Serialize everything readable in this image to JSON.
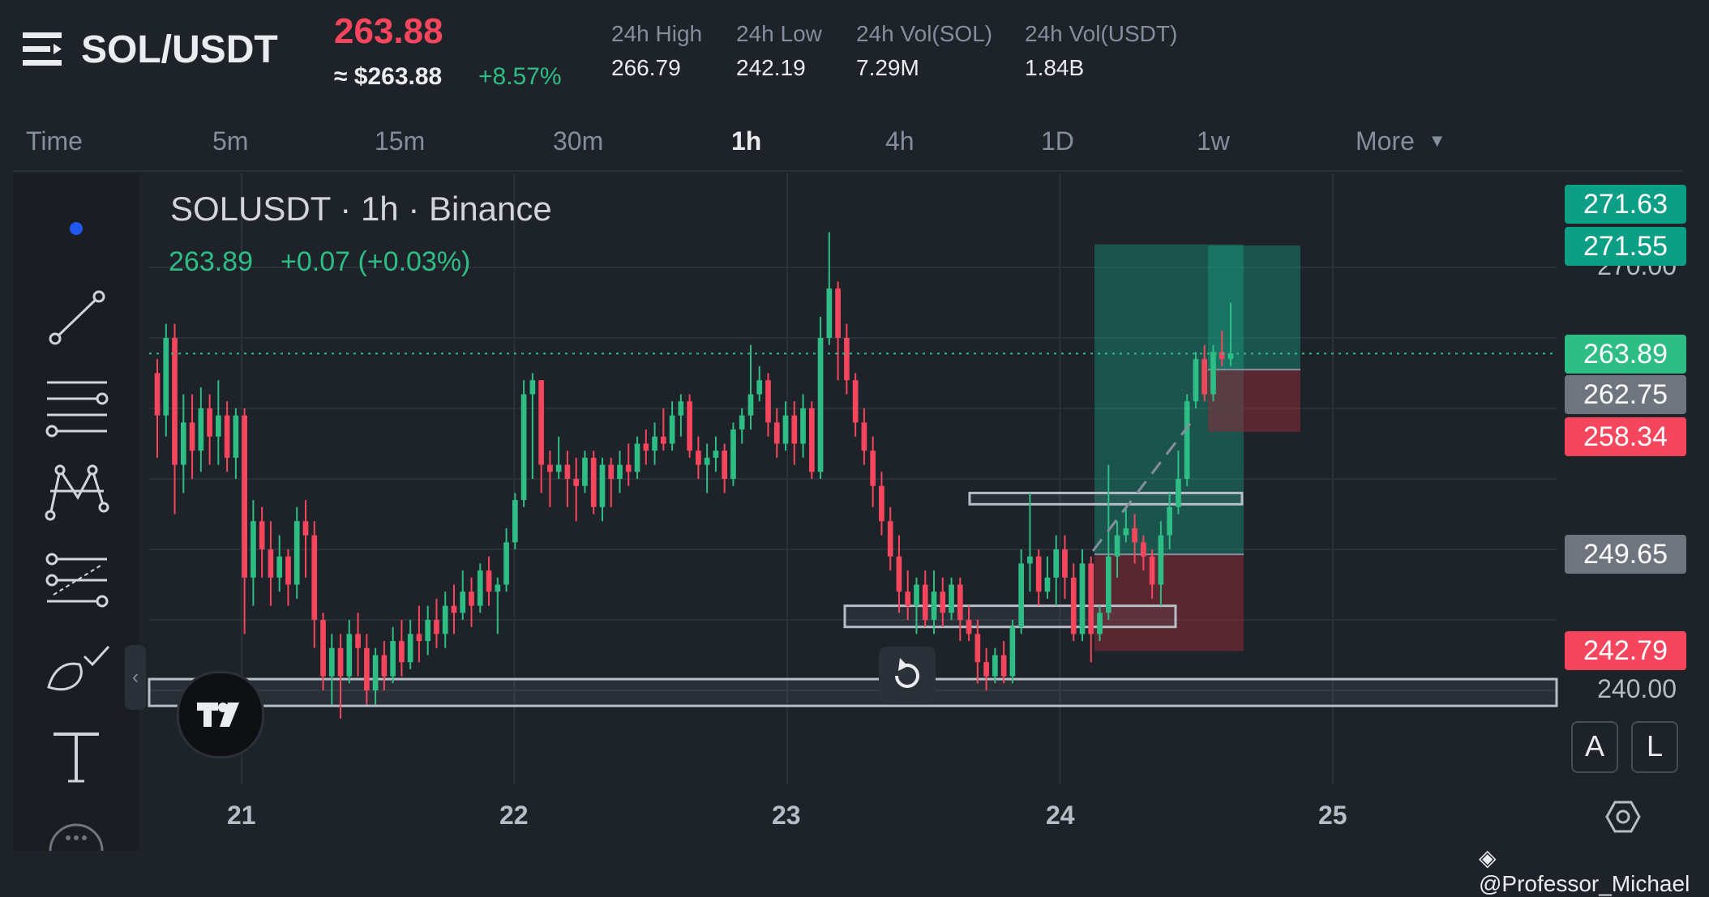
{
  "header": {
    "menu_icon": "menu-icon",
    "pair": "SOL/USDT",
    "last_price": "263.88",
    "usd_price": "≈ $263.88",
    "change_pct": "+8.57%",
    "stats": [
      {
        "label": "24h High",
        "value": "266.79"
      },
      {
        "label": "24h Low",
        "value": "242.19"
      },
      {
        "label": "24h Vol(SOL)",
        "value": "7.29M"
      },
      {
        "label": "24h Vol(USDT)",
        "value": "1.84B"
      }
    ]
  },
  "tabs": [
    "Time",
    "5m",
    "15m",
    "30m",
    "1h",
    "4h",
    "1D",
    "1w",
    "More"
  ],
  "active_tab": "1h",
  "chart_header": {
    "title": "SOLUSDT · 1h · Binance",
    "ohlc_price": "263.89",
    "ohlc_change": "+0.07 (+0.03%)"
  },
  "toolbar_icons": [
    "dot-icon",
    "trendline-icon",
    "horizontal-lines-icon",
    "pattern-icon",
    "fib-icon",
    "brush-icon",
    "text-icon",
    "more-icon"
  ],
  "price_labels": [
    {
      "value": "271.63",
      "color": "#0d9f85"
    },
    {
      "value": "271.55",
      "color": "#0d9f85"
    },
    {
      "value": "263.89",
      "color": "#2ebd85"
    },
    {
      "value": "262.75",
      "color": "#6f757e"
    },
    {
      "value": "258.34",
      "color": "#f6465d"
    },
    {
      "value": "249.65",
      "color": "#6f757e"
    },
    {
      "value": "242.79",
      "color": "#f6465d"
    }
  ],
  "axis_labels": {
    "top": "270.00",
    "bottom": "240.00",
    "auto": "A",
    "log": "L"
  },
  "watermark": "@Professor_Michael",
  "colors": {
    "up": "#2ebd85",
    "down": "#f6465d",
    "grid": "#2b3139",
    "bg": "#1e2329"
  },
  "chart_data": {
    "type": "candlestick",
    "symbol": "SOLUSDT",
    "interval": "1h",
    "exchange": "Binance",
    "x_ticks": [
      "21",
      "22",
      "23",
      "24",
      "25"
    ],
    "ylim": [
      238,
      275
    ],
    "y_ticks": [
      240,
      270
    ],
    "current_price": 263.89,
    "candles": [
      [
        262.5,
        259.5,
        263.5,
        256.5
      ],
      [
        259.5,
        265.0,
        266.0,
        258.0
      ],
      [
        265.0,
        256.0,
        266.0,
        252.5
      ],
      [
        256.0,
        259.0,
        261.0,
        254.0
      ],
      [
        259.0,
        257.0,
        261.0,
        255.0
      ],
      [
        257.0,
        260.0,
        261.5,
        255.5
      ],
      [
        260.0,
        258.0,
        261.0,
        256.0
      ],
      [
        258.0,
        259.5,
        262.0,
        256.0
      ],
      [
        259.5,
        256.5,
        260.5,
        255.5
      ],
      [
        256.5,
        259.5,
        260.0,
        255.0
      ],
      [
        259.5,
        248.0,
        260.0,
        244.0
      ],
      [
        248.0,
        252.0,
        253.5,
        246.0
      ],
      [
        252.0,
        250.0,
        253.0,
        248.0
      ],
      [
        250.0,
        248.0,
        252.0,
        246.0
      ],
      [
        248.0,
        249.5,
        251.0,
        247.0
      ],
      [
        249.5,
        247.5,
        250.0,
        246.0
      ],
      [
        247.5,
        252.0,
        253.0,
        246.5
      ],
      [
        252.0,
        251.0,
        253.5,
        248.0
      ],
      [
        251.0,
        245.0,
        252.0,
        243.0
      ],
      [
        245.0,
        241.0,
        245.5,
        240.0
      ],
      [
        241.0,
        243.0,
        244.0,
        239.0
      ],
      [
        243.0,
        241.0,
        244.0,
        238.0
      ],
      [
        241.0,
        244.0,
        245.0,
        240.5
      ],
      [
        244.0,
        243.0,
        245.5,
        241.0
      ],
      [
        243.0,
        240.0,
        244.0,
        239.0
      ],
      [
        240.0,
        242.5,
        243.0,
        239.0
      ],
      [
        242.5,
        241.0,
        243.5,
        240.0
      ],
      [
        241.0,
        243.5,
        244.5,
        240.5
      ],
      [
        243.5,
        242.0,
        245.0,
        241.0
      ],
      [
        242.0,
        244.0,
        245.0,
        241.5
      ],
      [
        244.0,
        243.5,
        246.0,
        242.0
      ],
      [
        243.5,
        245.0,
        246.0,
        242.5
      ],
      [
        245.0,
        244.0,
        246.5,
        243.0
      ],
      [
        244.0,
        246.0,
        247.0,
        243.0
      ],
      [
        246.0,
        245.5,
        247.5,
        244.0
      ],
      [
        245.5,
        247.0,
        248.5,
        245.0
      ],
      [
        247.0,
        246.0,
        248.0,
        244.5
      ],
      [
        246.0,
        248.5,
        249.0,
        245.5
      ],
      [
        248.5,
        247.0,
        249.5,
        246.0
      ],
      [
        247.0,
        247.5,
        248.0,
        244.0
      ],
      [
        247.5,
        250.5,
        251.5,
        247.0
      ],
      [
        250.5,
        253.5,
        254.0,
        250.0
      ],
      [
        253.5,
        261.0,
        262.0,
        253.0
      ],
      [
        261.0,
        262.0,
        262.5,
        255.0
      ],
      [
        262.0,
        256.0,
        262.0,
        254.0
      ],
      [
        256.0,
        255.5,
        257.0,
        253.0
      ],
      [
        255.5,
        256.0,
        258.0,
        255.0
      ],
      [
        256.0,
        255.0,
        257.0,
        253.0
      ],
      [
        255.0,
        254.5,
        256.5,
        252.0
      ],
      [
        254.5,
        256.5,
        257.0,
        254.0
      ],
      [
        256.5,
        253.0,
        257.0,
        252.5
      ],
      [
        253.0,
        256.0,
        256.5,
        252.0
      ],
      [
        256.0,
        255.0,
        256.5,
        253.0
      ],
      [
        255.0,
        256.0,
        257.0,
        254.0
      ],
      [
        256.0,
        255.5,
        257.5,
        254.5
      ],
      [
        255.5,
        257.5,
        258.0,
        255.0
      ],
      [
        257.5,
        257.0,
        258.5,
        256.0
      ],
      [
        257.0,
        258.0,
        259.0,
        256.0
      ],
      [
        258.0,
        257.5,
        260.0,
        257.0
      ],
      [
        257.5,
        259.5,
        260.5,
        257.0
      ],
      [
        259.5,
        260.5,
        261.0,
        258.0
      ],
      [
        260.5,
        257.0,
        261.0,
        256.5
      ],
      [
        257.0,
        256.0,
        258.0,
        255.0
      ],
      [
        256.0,
        256.5,
        257.5,
        254.0
      ],
      [
        256.5,
        257.0,
        258.0,
        255.5
      ],
      [
        257.0,
        255.0,
        257.5,
        254.0
      ],
      [
        255.0,
        258.5,
        259.0,
        254.5
      ],
      [
        258.5,
        259.5,
        260.0,
        257.5
      ],
      [
        259.5,
        261.0,
        264.5,
        258.5
      ],
      [
        261.0,
        262.0,
        263.0,
        260.5
      ],
      [
        262.0,
        259.0,
        262.5,
        258.0
      ],
      [
        259.0,
        257.5,
        260.0,
        256.5
      ],
      [
        257.5,
        259.5,
        260.5,
        257.0
      ],
      [
        259.5,
        257.5,
        260.5,
        256.0
      ],
      [
        257.5,
        260.0,
        261.0,
        256.5
      ],
      [
        260.0,
        255.5,
        260.5,
        255.0
      ],
      [
        255.5,
        265.0,
        266.5,
        255.0
      ],
      [
        265.0,
        268.5,
        272.5,
        264.5
      ],
      [
        268.5,
        265.0,
        269.0,
        262.0
      ],
      [
        265.0,
        262.0,
        266.0,
        261.0
      ],
      [
        262.0,
        259.0,
        262.5,
        258.0
      ],
      [
        259.0,
        257.0,
        260.0,
        256.0
      ],
      [
        257.0,
        254.5,
        258.0,
        253.0
      ],
      [
        254.5,
        252.0,
        255.5,
        251.0
      ],
      [
        252.0,
        249.5,
        253.0,
        248.5
      ],
      [
        249.5,
        247.0,
        251.0,
        245.5
      ],
      [
        247.0,
        246.0,
        248.5,
        245.0
      ],
      [
        246.0,
        247.5,
        248.0,
        244.0
      ],
      [
        247.5,
        245.0,
        248.5,
        244.5
      ],
      [
        245.0,
        247.0,
        248.5,
        244.0
      ],
      [
        247.0,
        245.5,
        248.0,
        244.5
      ],
      [
        245.5,
        247.5,
        248.0,
        245.0
      ],
      [
        247.5,
        245.0,
        248.0,
        243.5
      ],
      [
        245.0,
        244.0,
        246.0,
        243.5
      ],
      [
        244.0,
        242.0,
        245.0,
        240.5
      ],
      [
        242.0,
        241.0,
        243.0,
        240.0
      ],
      [
        241.0,
        242.5,
        243.0,
        240.5
      ],
      [
        242.5,
        241.0,
        243.5,
        240.5
      ],
      [
        241.0,
        244.5,
        245.0,
        240.5
      ],
      [
        244.5,
        249.0,
        250.0,
        244.0
      ],
      [
        249.0,
        249.5,
        254.0,
        247.0
      ],
      [
        249.5,
        247.0,
        250.0,
        246.0
      ],
      [
        247.0,
        248.0,
        249.5,
        246.5
      ],
      [
        248.0,
        250.0,
        251.0,
        246.0
      ],
      [
        250.0,
        248.0,
        251.0,
        246.5
      ],
      [
        248.0,
        244.0,
        249.0,
        243.5
      ],
      [
        244.0,
        249.0,
        250.0,
        243.5
      ],
      [
        249.0,
        244.0,
        249.5,
        242.0
      ],
      [
        244.0,
        245.5,
        246.0,
        243.5
      ],
      [
        245.5,
        249.5,
        256.0,
        245.0
      ],
      [
        249.5,
        251.0,
        252.0,
        248.0
      ],
      [
        251.0,
        251.5,
        253.0,
        250.5
      ],
      [
        251.5,
        250.5,
        252.5,
        249.0
      ],
      [
        250.5,
        249.5,
        251.0,
        248.5
      ],
      [
        249.5,
        247.5,
        250.0,
        246.5
      ],
      [
        247.5,
        251.0,
        252.0,
        246.0
      ],
      [
        251.0,
        253.0,
        254.0,
        250.0
      ],
      [
        253.0,
        255.0,
        257.0,
        252.5
      ],
      [
        255.0,
        260.5,
        261.0,
        254.5
      ],
      [
        260.5,
        263.5,
        264.0,
        260.0
      ],
      [
        263.5,
        261.0,
        264.5,
        260.5
      ],
      [
        261.0,
        264.0,
        264.5,
        260.5
      ],
      [
        264.0,
        263.5,
        265.5,
        263.0
      ],
      [
        263.5,
        263.9,
        267.5,
        263.0
      ]
    ],
    "rectangles": [
      {
        "name": "upper-range-box",
        "x_range": [
          "23.7",
          "24.7"
        ],
        "y_range": [
          253.2,
          254.0
        ]
      },
      {
        "name": "lower-range-box",
        "x_range": [
          "23.2",
          "24.4"
        ],
        "y_range": [
          244.5,
          246.0
        ]
      },
      {
        "name": "bottom-range-box",
        "x_range": [
          "20.7",
          "25.8"
        ],
        "y_range": [
          238.9,
          240.8
        ]
      }
    ],
    "positions": [
      {
        "name": "long-position-1",
        "entry": 249.65,
        "target": 271.63,
        "stop": 242.79
      },
      {
        "name": "long-position-2",
        "entry": 262.75,
        "target": 271.55,
        "stop": 258.34
      }
    ]
  }
}
